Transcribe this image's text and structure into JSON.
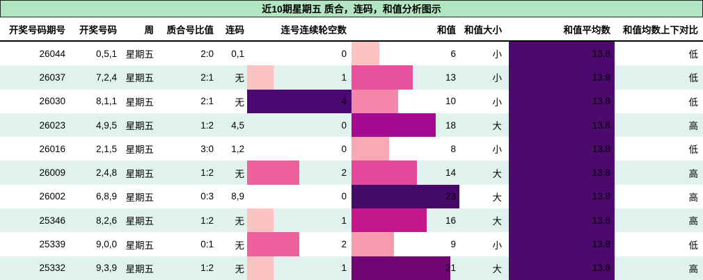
{
  "title": "近10期星期五 质合，连码，和值分析图示",
  "colors": {
    "title_bg": "#b2e5c2",
    "row_alt_bg": "#e0f1ee",
    "avg_bar": "#4c0a6e",
    "skip_bar_light": "#fbc3c1",
    "skip_bar_mid": "#ee5f9d",
    "skip_bar_dark": "#4a0873"
  },
  "chart_data": {
    "type": "table",
    "title": "近10期星期五 质合，连码，和值分析图示",
    "columns": [
      "开奖号码期号",
      "开奖号码",
      "周",
      "质合号比值",
      "连码",
      "连号连续轮空数",
      "和值",
      "和值大小",
      "和值平均数",
      "和值均数上下对比"
    ],
    "bar_scales": {
      "skip_max": 4,
      "sum_max": 23
    },
    "avg_bar_color": "#4c0a6e",
    "rows": [
      {
        "period": "26044",
        "numbers": "0,5,1",
        "week": "星期五",
        "ratio": "2:0",
        "lianma": "0,1",
        "skip": 0,
        "skip_color": "",
        "sum": 6,
        "sum_color": "#fbc3c1",
        "size": "小",
        "avg": "13.8",
        "compare": "低"
      },
      {
        "period": "26037",
        "numbers": "7,2,4",
        "week": "星期五",
        "ratio": "2:1",
        "lianma": "无",
        "skip": 1,
        "skip_color": "#fbc3c1",
        "sum": 13,
        "sum_color": "#e8519b",
        "size": "小",
        "avg": "13.8",
        "compare": "低"
      },
      {
        "period": "26030",
        "numbers": "8,1,1",
        "week": "星期五",
        "ratio": "2:1",
        "lianma": "无",
        "skip": 4,
        "skip_color": "#4a0873",
        "sum": 10,
        "sum_color": "#f487a9",
        "size": "小",
        "avg": "13.8",
        "compare": "低"
      },
      {
        "period": "26023",
        "numbers": "4,9,5",
        "week": "星期五",
        "ratio": "1:2",
        "lianma": "4,5",
        "skip": 0,
        "skip_color": "",
        "sum": 18,
        "sum_color": "#a30b90",
        "size": "大",
        "avg": "13.8",
        "compare": "高"
      },
      {
        "period": "26016",
        "numbers": "2,1,5",
        "week": "星期五",
        "ratio": "3:0",
        "lianma": "1,2",
        "skip": 0,
        "skip_color": "",
        "sum": 8,
        "sum_color": "#faa7b6",
        "size": "小",
        "avg": "13.8",
        "compare": "低"
      },
      {
        "period": "26009",
        "numbers": "2,4,8",
        "week": "星期五",
        "ratio": "1:2",
        "lianma": "无",
        "skip": 2,
        "skip_color": "#ee5f9d",
        "sum": 14,
        "sum_color": "#e2499a",
        "size": "大",
        "avg": "13.8",
        "compare": "高"
      },
      {
        "period": "26002",
        "numbers": "6,8,9",
        "week": "星期五",
        "ratio": "0:3",
        "lianma": "8,9",
        "skip": 0,
        "skip_color": "",
        "sum": 23,
        "sum_color": "#460a6b",
        "size": "大",
        "avg": "13.8",
        "compare": "高"
      },
      {
        "period": "25346",
        "numbers": "8,2,6",
        "week": "星期五",
        "ratio": "1:2",
        "lianma": "无",
        "skip": 1,
        "skip_color": "#fbc3c1",
        "sum": 16,
        "sum_color": "#c2188c",
        "size": "大",
        "avg": "13.8",
        "compare": "高"
      },
      {
        "period": "25339",
        "numbers": "9,0,0",
        "week": "星期五",
        "ratio": "0:1",
        "lianma": "无",
        "skip": 2,
        "skip_color": "#ee5f9d",
        "sum": 9,
        "sum_color": "#f99ab3",
        "size": "小",
        "avg": "13.8",
        "compare": "低"
      },
      {
        "period": "25332",
        "numbers": "9,3,9",
        "week": "星期五",
        "ratio": "1:2",
        "lianma": "无",
        "skip": 1,
        "skip_color": "#fbc3c1",
        "sum": 21,
        "sum_color": "#700473",
        "size": "大",
        "avg": "13.8",
        "compare": "高"
      }
    ],
    "series_summary": {
      "periods": [
        "26044",
        "26037",
        "26030",
        "26023",
        "26016",
        "26009",
        "26002",
        "25346",
        "25339",
        "25332"
      ],
      "skip_values": [
        0,
        1,
        4,
        0,
        0,
        2,
        0,
        1,
        2,
        1
      ],
      "sum_values": [
        6,
        13,
        10,
        18,
        8,
        14,
        23,
        16,
        9,
        21
      ],
      "sum_average": 13.8
    }
  }
}
